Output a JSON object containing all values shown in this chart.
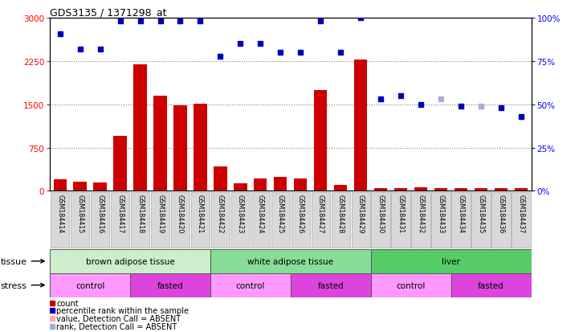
{
  "title": "GDS3135 / 1371298_at",
  "samples": [
    "GSM184414",
    "GSM184415",
    "GSM184416",
    "GSM184417",
    "GSM184418",
    "GSM184419",
    "GSM184420",
    "GSM184421",
    "GSM184422",
    "GSM184423",
    "GSM184424",
    "GSM184425",
    "GSM184426",
    "GSM184427",
    "GSM184428",
    "GSM184429",
    "GSM184430",
    "GSM184431",
    "GSM184432",
    "GSM184433",
    "GSM184434",
    "GSM184435",
    "GSM184436",
    "GSM184437"
  ],
  "counts": [
    200,
    160,
    140,
    950,
    2200,
    1650,
    1480,
    1510,
    420,
    130,
    220,
    240,
    210,
    1750,
    100,
    2280,
    50,
    55,
    60,
    50,
    55,
    50,
    55,
    45
  ],
  "count_absent": [
    false,
    false,
    false,
    false,
    false,
    false,
    false,
    false,
    false,
    false,
    false,
    false,
    false,
    false,
    false,
    false,
    false,
    false,
    false,
    false,
    false,
    false,
    false,
    false
  ],
  "percentile_pct": [
    91,
    82,
    82,
    98,
    98,
    98,
    98,
    98,
    78,
    85,
    85,
    80,
    80,
    98,
    80,
    100,
    53,
    55,
    50,
    53,
    49,
    49,
    48,
    43
  ],
  "percentile_absent": [
    false,
    false,
    false,
    false,
    false,
    false,
    false,
    false,
    false,
    false,
    false,
    false,
    false,
    false,
    false,
    false,
    false,
    false,
    false,
    true,
    false,
    true,
    false,
    false
  ],
  "bar_color": "#CC0000",
  "bar_absent_color": "#FFAAAA",
  "dot_color": "#0000BB",
  "dot_absent_color": "#AAAADD",
  "yticks_left": [
    0,
    750,
    1500,
    2250,
    3000
  ],
  "yticks_right": [
    0,
    25,
    50,
    75,
    100
  ],
  "tissue_groups": [
    {
      "label": "brown adipose tissue",
      "start": 0,
      "end": 8,
      "color": "#AAEEBB"
    },
    {
      "label": "white adipose tissue",
      "start": 8,
      "end": 16,
      "color": "#88DD99"
    },
    {
      "label": "liver",
      "start": 16,
      "end": 24,
      "color": "#66CC77"
    }
  ],
  "stress_groups": [
    {
      "label": "control",
      "start": 0,
      "end": 4,
      "color": "#FF99FF"
    },
    {
      "label": "fasted",
      "start": 4,
      "end": 8,
      "color": "#DD44DD"
    },
    {
      "label": "control",
      "start": 8,
      "end": 12,
      "color": "#FF99FF"
    },
    {
      "label": "fasted",
      "start": 12,
      "end": 16,
      "color": "#DD44DD"
    },
    {
      "label": "control",
      "start": 16,
      "end": 20,
      "color": "#FF99FF"
    },
    {
      "label": "fasted",
      "start": 20,
      "end": 24,
      "color": "#DD44DD"
    }
  ],
  "legend_items": [
    {
      "color": "#CC0000",
      "label": "count"
    },
    {
      "color": "#0000BB",
      "label": "percentile rank within the sample"
    },
    {
      "color": "#FFAAAA",
      "label": "value, Detection Call = ABSENT"
    },
    {
      "color": "#AAAADD",
      "label": "rank, Detection Call = ABSENT"
    }
  ]
}
